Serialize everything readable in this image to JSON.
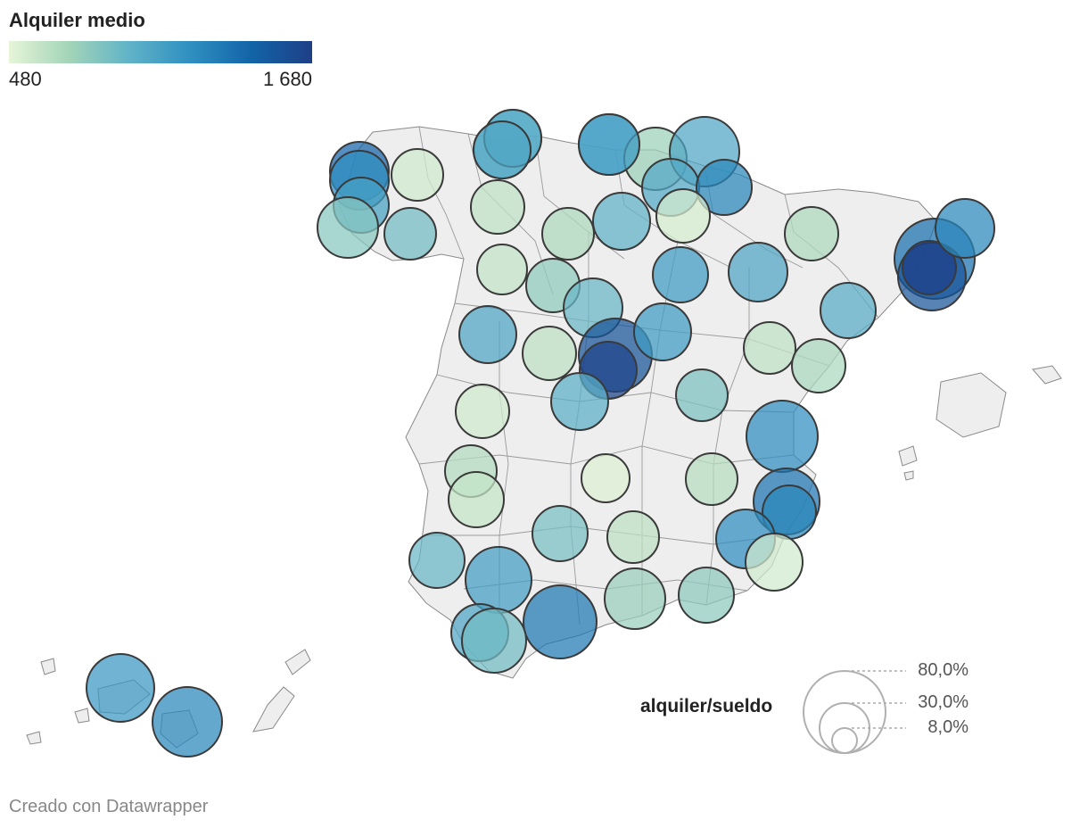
{
  "legend": {
    "title": "Alquiler medio",
    "min_label": "480",
    "max_label": "1 680",
    "min_value": 480,
    "max_value": 1680,
    "colors": [
      "#e6f5d8",
      "#a3d4b8",
      "#5fb2c8",
      "#2f8fc0",
      "#1264a8",
      "#1f3f86"
    ]
  },
  "size_legend": {
    "title": "alquiler/sueldo",
    "items": [
      "80,0%",
      "30,0%",
      "8,0%"
    ]
  },
  "footer": "Creado con Datawrapper",
  "map_colors": {
    "land": "#eeeeee",
    "border": "#888888",
    "bubble_stroke": "#3a3a3a"
  },
  "chart_data": {
    "type": "bubble-map",
    "color_scale": "Alquiler medio",
    "size_scale": "alquiler/sueldo",
    "bubbles": [
      {
        "rent": 1100
      },
      {
        "rent": 900
      },
      {
        "rent": 1000
      },
      {
        "rent": 750
      },
      {
        "rent": 1050
      },
      {
        "rent": 560
      },
      {
        "rent": 620
      },
      {
        "rent": 680
      },
      {
        "rent": 960
      },
      {
        "rent": 1020
      },
      {
        "rent": 1250
      },
      {
        "rent": 1450
      },
      {
        "rent": 1200
      },
      {
        "rent": 1080
      },
      {
        "rent": 820
      },
      {
        "rent": 900
      },
      {
        "rent": 610
      },
      {
        "rent": 790
      },
      {
        "rent": 540
      },
      {
        "rent": 680
      },
      {
        "rent": 1380
      },
      {
        "rent": 1550
      },
      {
        "rent": 1680
      },
      {
        "rent": 1250
      },
      {
        "rent": 1050
      },
      {
        "rent": 1120
      },
      {
        "rent": 930
      },
      {
        "rent": 1050
      },
      {
        "rent": 630
      },
      {
        "rent": 1550
      },
      {
        "rent": 1650
      },
      {
        "rent": 1120
      },
      {
        "rent": 990
      },
      {
        "rent": 620
      },
      {
        "rent": 690
      },
      {
        "rent": 860
      },
      {
        "rent": 1000
      },
      {
        "rent": 1200
      },
      {
        "rent": 560
      },
      {
        "rent": 670
      },
      {
        "rent": 600
      },
      {
        "rent": 510
      },
      {
        "rent": 650
      },
      {
        "rent": 1350
      },
      {
        "rent": 1250
      },
      {
        "rent": 870
      },
      {
        "rent": 630
      },
      {
        "rent": 1200
      },
      {
        "rent": 560
      },
      {
        "rent": 930
      },
      {
        "rent": 800
      },
      {
        "rent": 760
      },
      {
        "rent": 1100
      },
      {
        "rent": 1330
      },
      {
        "rent": 1050
      },
      {
        "rent": 900
      },
      {
        "rent": 1150
      },
      {
        "rent": 1250
      },
      {
        "rent": 980
      },
      {
        "rent": 1050
      },
      {
        "rent": 1100
      }
    ]
  }
}
